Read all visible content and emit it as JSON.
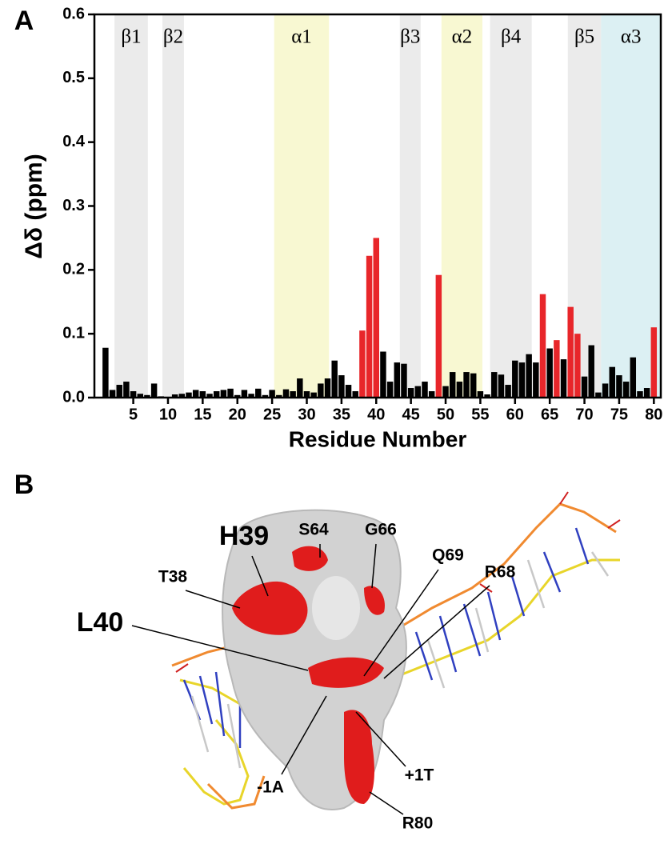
{
  "chart_data": {
    "type": "bar",
    "panel_label": "A",
    "y_label": "Δδ (ppm)",
    "x_label": "Residue Number",
    "x": [
      1,
      2,
      3,
      4,
      5,
      6,
      7,
      8,
      9,
      10,
      11,
      12,
      13,
      14,
      15,
      16,
      17,
      18,
      19,
      20,
      21,
      22,
      23,
      24,
      25,
      26,
      27,
      28,
      29,
      30,
      31,
      32,
      33,
      34,
      35,
      36,
      37,
      38,
      39,
      40,
      41,
      42,
      43,
      44,
      45,
      46,
      47,
      48,
      49,
      50,
      51,
      52,
      53,
      54,
      55,
      56,
      57,
      58,
      59,
      60,
      61,
      62,
      63,
      64,
      65,
      66,
      67,
      68,
      69,
      70,
      71,
      72,
      73,
      74,
      75,
      76,
      77,
      78,
      79,
      80
    ],
    "values": [
      0.078,
      0.012,
      0.02,
      0.025,
      0.01,
      0.006,
      0.004,
      0.022,
      0.002,
      0.001,
      0.005,
      0.006,
      0.008,
      0.012,
      0.01,
      0.006,
      0.01,
      0.012,
      0.014,
      0.004,
      0.012,
      0.006,
      0.014,
      0.004,
      0.012,
      0.004,
      0.013,
      0.01,
      0.03,
      0.01,
      0.008,
      0.022,
      0.03,
      0.058,
      0.035,
      0.02,
      0.01,
      0.105,
      0.222,
      0.25,
      0.072,
      0.025,
      0.055,
      0.053,
      0.015,
      0.018,
      0.025,
      0.01,
      0.192,
      0.018,
      0.04,
      0.025,
      0.04,
      0.038,
      0.01,
      0.005,
      0.04,
      0.036,
      0.02,
      0.058,
      0.055,
      0.068,
      0.055,
      0.162,
      0.077,
      0.09,
      0.06,
      0.142,
      0.1,
      0.033,
      0.082,
      0.008,
      0.022,
      0.048,
      0.035,
      0.025,
      0.063,
      0.01,
      0.015,
      0.11
    ],
    "color": "#000000",
    "highlight_color": "#e8262a",
    "highlighted_x": [
      38,
      39,
      40,
      49,
      64,
      66,
      68,
      69,
      80
    ],
    "xlim": [
      -0.6,
      81
    ],
    "ylim": [
      0,
      0.6
    ],
    "xticks": [
      5,
      10,
      15,
      20,
      25,
      30,
      35,
      40,
      45,
      50,
      55,
      60,
      65,
      70,
      75,
      80
    ],
    "yticks": [
      {
        "value": 0,
        "label": "0.0"
      },
      {
        "value": 0.1,
        "label": "0.1"
      },
      {
        "value": 0.2,
        "label": "0.2"
      },
      {
        "value": 0.3,
        "label": "0.3"
      },
      {
        "value": 0.4,
        "label": "0.4"
      },
      {
        "value": 0.5,
        "label": "0.5"
      },
      {
        "value": 0.6,
        "label": "0.6"
      }
    ],
    "regions": [
      {
        "label": "β1",
        "start": 2.3,
        "end": 7.1,
        "color": "#ebebeb"
      },
      {
        "label": "β2",
        "start": 9.2,
        "end": 12.3,
        "color": "#ebebeb"
      },
      {
        "label": "α1",
        "start": 25.3,
        "end": 33.2,
        "color": "#f8f8d2"
      },
      {
        "label": "β3",
        "start": 43.4,
        "end": 46.4,
        "color": "#ebebeb"
      },
      {
        "label": "α2",
        "start": 49.4,
        "end": 55.3,
        "color": "#f8f8d2"
      },
      {
        "label": "β4",
        "start": 56.4,
        "end": 62.4,
        "color": "#ebebeb"
      },
      {
        "label": "β5",
        "start": 67.6,
        "end": 72.4,
        "color": "#ebebeb"
      },
      {
        "label": "α3",
        "start": 72.4,
        "end": 81,
        "color": "#dcf0f3"
      }
    ]
  },
  "panel_b": {
    "label": "B",
    "annotations": [
      "H39",
      "S64",
      "G66",
      "Q69",
      "R68",
      "T38",
      "L40",
      "-1A",
      "+1T",
      "R80"
    ]
  }
}
